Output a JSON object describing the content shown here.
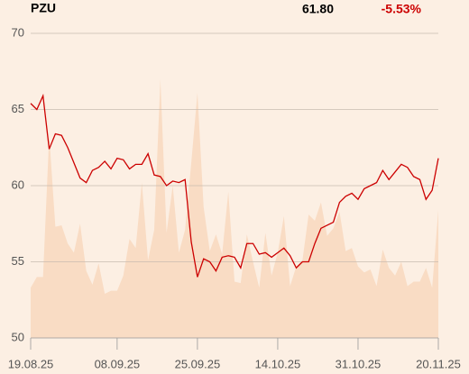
{
  "chart_data": {
    "type": "line",
    "title": "PZU",
    "last_price": "61.80",
    "change": "-5.53%",
    "categories": [
      "19.08.25",
      null,
      null,
      null,
      null,
      null,
      null,
      null,
      null,
      null,
      null,
      null,
      null,
      null,
      "08.09.25",
      null,
      null,
      null,
      null,
      null,
      null,
      null,
      null,
      null,
      null,
      null,
      null,
      "25.09.25",
      null,
      null,
      null,
      null,
      null,
      null,
      null,
      null,
      null,
      null,
      null,
      null,
      "14.10.25",
      null,
      null,
      null,
      null,
      null,
      null,
      null,
      null,
      null,
      null,
      null,
      null,
      "31.10.25",
      null,
      null,
      null,
      null,
      null,
      null,
      null,
      null,
      null,
      null,
      null,
      null,
      "20.11.25"
    ],
    "series": [
      {
        "type": "line",
        "color": "#cc0000",
        "values": [
          65.4,
          65.0,
          65.9,
          62.4,
          63.4,
          63.3,
          62.5,
          61.5,
          60.5,
          60.2,
          61.0,
          61.2,
          61.6,
          61.1,
          61.8,
          61.7,
          61.1,
          61.4,
          61.4,
          62.1,
          60.7,
          60.6,
          60.0,
          60.3,
          60.2,
          60.4,
          56.3,
          54.0,
          55.2,
          55.0,
          54.4,
          55.3,
          55.4,
          55.3,
          54.6,
          56.2,
          56.2,
          55.5,
          55.6,
          55.3,
          55.6,
          55.9,
          55.4,
          54.6,
          55.0,
          55.0,
          56.2,
          57.2,
          57.4,
          57.6,
          58.9,
          59.3,
          59.5,
          59.1,
          59.8,
          60.0,
          60.2,
          61.0,
          60.4,
          60.9,
          61.4,
          61.2,
          60.6,
          60.4,
          59.1,
          59.7,
          61.8
        ]
      },
      {
        "type": "area",
        "color": "#f9dcc4",
        "values": [
          53.3,
          54.0,
          54.0,
          63.3,
          57.3,
          57.4,
          56.2,
          55.6,
          57.5,
          54.4,
          53.5,
          54.9,
          52.9,
          53.1,
          53.1,
          54.1,
          56.5,
          55.9,
          60.2,
          55.1,
          57.1,
          67.0,
          56.9,
          60.0,
          55.6,
          57.1,
          61.5,
          66.1,
          58.6,
          55.7,
          56.8,
          55.5,
          59.6,
          53.7,
          53.6,
          56.8,
          55.0,
          53.3,
          56.9,
          54.1,
          55.6,
          58.0,
          53.4,
          54.7,
          55.1,
          58.1,
          57.7,
          58.9,
          56.7,
          57.2,
          58.3,
          55.7,
          55.9,
          54.7,
          54.3,
          54.5,
          53.4,
          55.8,
          54.6,
          54.1,
          55.0,
          53.4,
          53.7,
          53.7,
          54.6,
          53.3,
          58.4
        ]
      }
    ],
    "ylim": [
      50,
      70
    ],
    "yticks": [
      50,
      55,
      60,
      65,
      70
    ],
    "grid": true
  }
}
